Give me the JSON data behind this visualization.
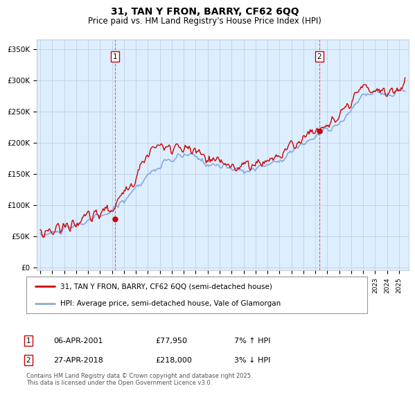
{
  "title": "31, TAN Y FRON, BARRY, CF62 6QQ",
  "subtitle": "Price paid vs. HM Land Registry's House Price Index (HPI)",
  "ylabel_ticks": [
    "£0",
    "£50K",
    "£100K",
    "£150K",
    "£200K",
    "£250K",
    "£300K",
    "£350K"
  ],
  "ytick_values": [
    0,
    50000,
    100000,
    150000,
    200000,
    250000,
    300000,
    350000
  ],
  "ylim": [
    -5000,
    365000
  ],
  "xlim_start": 1994.7,
  "xlim_end": 2025.8,
  "marker1_x": 2001.27,
  "marker1_y": 77950,
  "marker2_x": 2018.32,
  "marker2_y": 218000,
  "legend_line1": "31, TAN Y FRON, BARRY, CF62 6QQ (semi-detached house)",
  "legend_line2": "HPI: Average price, semi-detached house, Vale of Glamorgan",
  "marker1_date": "06-APR-2001",
  "marker1_price": "£77,950",
  "marker1_hpi": "7% ↑ HPI",
  "marker2_date": "27-APR-2018",
  "marker2_price": "£218,000",
  "marker2_hpi": "3% ↓ HPI",
  "footer": "Contains HM Land Registry data © Crown copyright and database right 2025.\nThis data is licensed under the Open Government Licence v3.0.",
  "price_color": "#cc0000",
  "hpi_color": "#88aadd",
  "bg_color": "#ddeeff",
  "grid_color": "#c0d0e8",
  "dashed_color": "#ff5555"
}
